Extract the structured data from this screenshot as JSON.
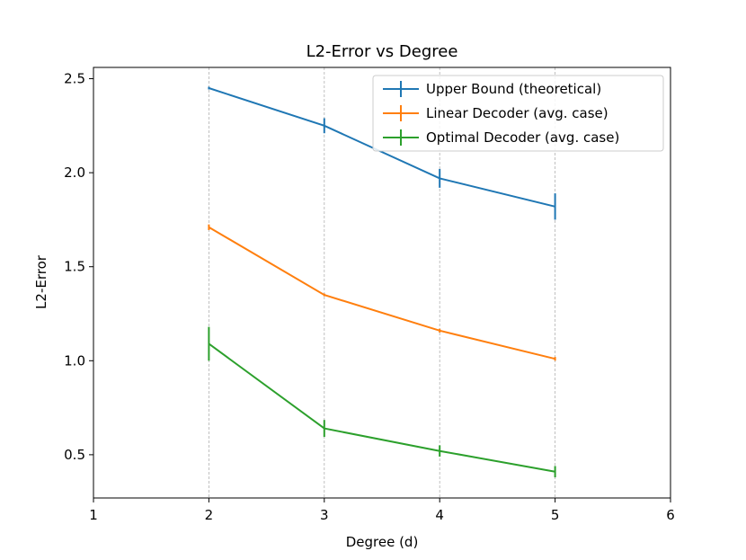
{
  "chart_data": {
    "type": "line",
    "title": "L2-Error vs Degree",
    "xlabel": "Degree (d)",
    "ylabel": "L2-Error",
    "xlim": [
      1,
      6
    ],
    "ylim": [
      0.27,
      2.56
    ],
    "xticks": [
      1,
      2,
      3,
      4,
      5,
      6
    ],
    "yticks": [
      0.5,
      1.0,
      1.5,
      2.0,
      2.5
    ],
    "ytick_labels": [
      "0.5",
      "1.0",
      "1.5",
      "2.0",
      "2.5"
    ],
    "grid": "vertical dashed at x ticks",
    "legend_position": "top-right",
    "series": [
      {
        "name": "Upper Bound (theoretical)",
        "color": "#1f77b4",
        "x": [
          2,
          3,
          4,
          5
        ],
        "y": [
          2.45,
          2.25,
          1.97,
          1.82
        ],
        "yerr": [
          0.0,
          0.04,
          0.05,
          0.07
        ]
      },
      {
        "name": "Linear Decoder (avg. case)",
        "color": "#ff7f0e",
        "x": [
          2,
          3,
          4,
          5
        ],
        "y": [
          1.71,
          1.35,
          1.16,
          1.01
        ],
        "yerr": [
          0.015,
          0.005,
          0.01,
          0.01
        ]
      },
      {
        "name": "Optimal Decoder (avg. case)",
        "color": "#2ca02c",
        "x": [
          2,
          3,
          4,
          5
        ],
        "y": [
          1.09,
          0.64,
          0.52,
          0.41
        ],
        "yerr": [
          0.09,
          0.045,
          0.03,
          0.03
        ]
      }
    ]
  }
}
